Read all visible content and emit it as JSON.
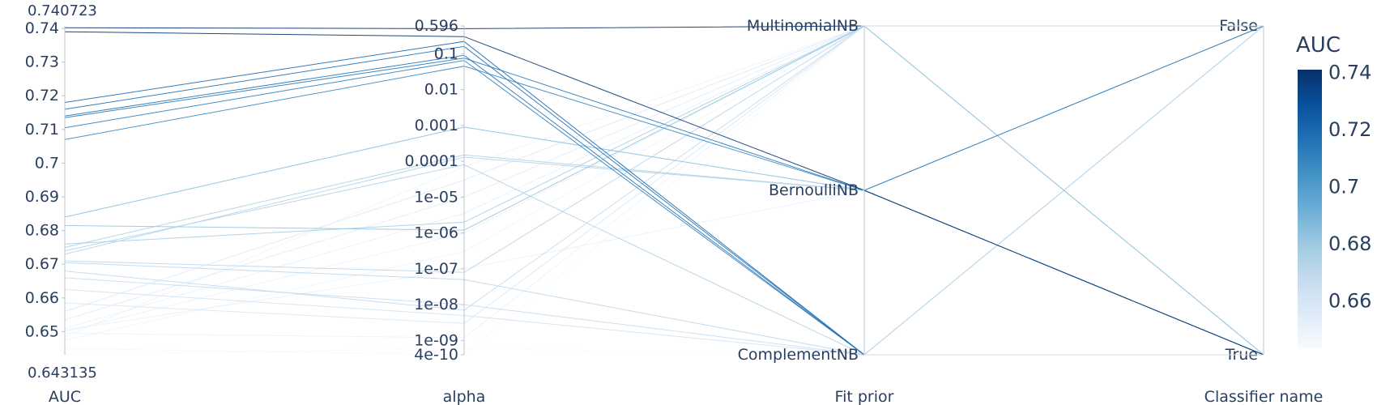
{
  "chart_data": {
    "type": "parallel_coordinates",
    "colorscale": [
      "#f7fbff",
      "#deebf7",
      "#c6dbef",
      "#9ecae1",
      "#6baed6",
      "#4292c6",
      "#2171b5",
      "#08519c",
      "#08306b"
    ],
    "color_range": [
      0.643135,
      0.740723
    ],
    "colorbar": {
      "title": "AUC",
      "ticks": [
        0.66,
        0.68,
        0.7,
        0.72,
        0.74
      ]
    },
    "dimensions": [
      {
        "label": "AUC",
        "kind": "linear",
        "range": [
          0.643135,
          0.740723
        ],
        "range_labels": [
          "0.740723",
          "0.643135"
        ],
        "ticks": [
          0.65,
          0.66,
          0.67,
          0.68,
          0.69,
          0.7,
          0.71,
          0.72,
          0.73,
          0.74
        ]
      },
      {
        "label": "alpha",
        "kind": "log",
        "range": [
          4e-10,
          0.596
        ],
        "tick_values": [
          4e-10,
          1e-09,
          1e-08,
          1e-07,
          1e-06,
          1e-05,
          0.0001,
          0.001,
          0.01,
          0.1,
          0.596
        ],
        "tick_labels": [
          "4e-10",
          "1e-09",
          "1e-08",
          "1e-07",
          "1e-06",
          "1e-05",
          "0.0001",
          "0.001",
          "0.01",
          "0.1",
          "0.596"
        ]
      },
      {
        "label": "Fit prior",
        "kind": "category",
        "categories": [
          "ComplementNB",
          "BernoulliNB",
          "MultinomialNB"
        ]
      },
      {
        "label": "Classifier name",
        "kind": "category",
        "categories": [
          "True",
          "False"
        ]
      }
    ],
    "lines": [
      {
        "auc": 0.7402,
        "alpha": 0.5,
        "fit": "MultinomialNB",
        "clf": "False"
      },
      {
        "auc": 0.739,
        "alpha": 0.3,
        "fit": "BernoulliNB",
        "clf": "True"
      },
      {
        "auc": 0.718,
        "alpha": 0.22,
        "fit": "ComplementNB",
        "clf": "True"
      },
      {
        "auc": 0.716,
        "alpha": 0.16,
        "fit": "ComplementNB",
        "clf": "True"
      },
      {
        "auc": 0.714,
        "alpha": 0.09,
        "fit": "ComplementNB",
        "clf": "True"
      },
      {
        "auc": 0.7135,
        "alpha": 0.075,
        "fit": "BernoulliNB",
        "clf": "False"
      },
      {
        "auc": 0.7105,
        "alpha": 0.065,
        "fit": "ComplementNB",
        "clf": "True"
      },
      {
        "auc": 0.707,
        "alpha": 0.045,
        "fit": "BernoulliNB",
        "clf": "True"
      },
      {
        "auc": 0.684,
        "alpha": 0.0009,
        "fit": "BernoulliNB",
        "clf": "True"
      },
      {
        "auc": 0.675,
        "alpha": 0.00015,
        "fit": "BernoulliNB",
        "clf": "False"
      },
      {
        "auc": 0.674,
        "alpha": 8e-05,
        "fit": "ComplementNB",
        "clf": "False"
      },
      {
        "auc": 0.673,
        "alpha": 0.00013,
        "fit": "BernoulliNB",
        "clf": "True"
      },
      {
        "auc": 0.6815,
        "alpha": 1.2e-06,
        "fit": "MultinomialNB",
        "clf": "True"
      },
      {
        "auc": 0.676,
        "alpha": 2e-06,
        "fit": "MultinomialNB",
        "clf": "False"
      },
      {
        "auc": 0.671,
        "alpha": 8e-08,
        "fit": "MultinomialNB",
        "clf": "True"
      },
      {
        "auc": 0.6705,
        "alpha": 5e-08,
        "fit": "ComplementNB",
        "clf": "True"
      },
      {
        "auc": 0.668,
        "alpha": 7e-09,
        "fit": "MultinomialNB",
        "clf": "False"
      },
      {
        "auc": 0.666,
        "alpha": 1e-08,
        "fit": "ComplementNB",
        "clf": "False"
      },
      {
        "auc": 0.6625,
        "alpha": 5e-09,
        "fit": "ComplementNB",
        "clf": "True"
      },
      {
        "auc": 0.6585,
        "alpha": 3e-09,
        "fit": "MultinomialNB",
        "clf": "True"
      },
      {
        "auc": 0.656,
        "alpha": 3e-05,
        "fit": "MultinomialNB",
        "clf": "False"
      },
      {
        "auc": 0.6535,
        "alpha": 1e-05,
        "fit": "MultinomialNB",
        "clf": "True"
      },
      {
        "auc": 0.651,
        "alpha": 3.5e-06,
        "fit": "MultinomialNB",
        "clf": "False"
      },
      {
        "auc": 0.6505,
        "alpha": 1e-07,
        "fit": "BernoulliNB",
        "clf": "True"
      },
      {
        "auc": 0.65,
        "alpha": 1e-06,
        "fit": "MultinomialNB",
        "clf": "True"
      },
      {
        "auc": 0.6495,
        "alpha": 1.2e-09,
        "fit": "MultinomialNB",
        "clf": "False"
      },
      {
        "auc": 0.6485,
        "alpha": 7e-05,
        "fit": "MultinomialNB",
        "clf": "True"
      },
      {
        "auc": 0.6475,
        "alpha": 3e-07,
        "fit": "MultinomialNB",
        "clf": "False"
      },
      {
        "auc": 0.645,
        "alpha": 4e-10,
        "fit": "MultinomialNB",
        "clf": "True"
      },
      {
        "auc": 0.6432,
        "alpha": 6e-10,
        "fit": "ComplementNB",
        "clf": "False"
      }
    ]
  }
}
